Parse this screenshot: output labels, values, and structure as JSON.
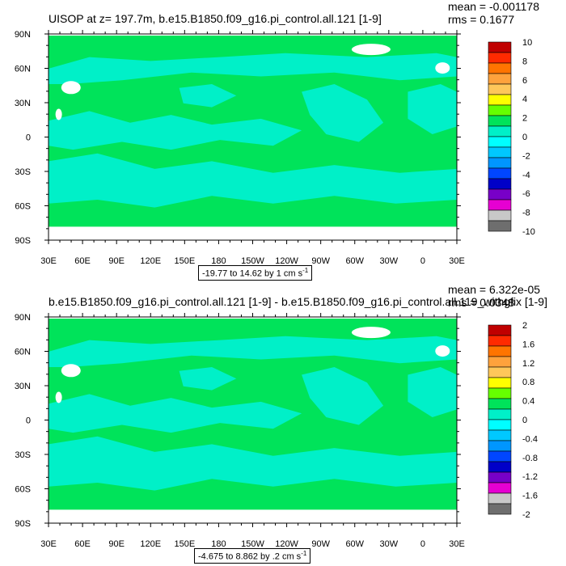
{
  "panels": [
    {
      "title": "UISOP at z= 197.7m, b.e15.B1850.f09_g16.pi_control.all.121 [1-9]",
      "mean_label": "mean = -0.001178",
      "rms_label": "rms = 0.1677",
      "contour_info": {
        "text": "-19.77 to 14.62 by 1 cm s",
        "unit_exp": "-1"
      },
      "colorbar": {
        "labels": [
          "10",
          "8",
          "6",
          "4",
          "2",
          "0",
          "-2",
          "-4",
          "-6",
          "-8",
          "-10"
        ],
        "colors": [
          "#c00000",
          "#ff2a00",
          "#ff7400",
          "#ffa23c",
          "#ffc75a",
          "#ffff00",
          "#66ff00",
          "#00e35a",
          "#00f0c8",
          "#00ffff",
          "#00c8ff",
          "#0096ff",
          "#0046ff",
          "#0000c8",
          "#7800c8",
          "#e600d2",
          "#c8c8c8",
          "#6e6e6e"
        ]
      }
    },
    {
      "title": "b.e15.B1850.f09_g16.pi_control.all.121 [1-9] - b.e15.B1850.f09_g16.pi_control.all.119_withgfix [1-9]",
      "mean_label": "mean = 6.322e-05",
      "rms_label": "rms = 0.0348",
      "contour_info": {
        "text": "-4.675 to 8.862 by .2 cm s",
        "unit_exp": "-1"
      },
      "colorbar": {
        "labels": [
          "2",
          "1.6",
          "1.2",
          "0.8",
          "0.4",
          "0",
          "-0.4",
          "-0.8",
          "-1.2",
          "-1.6",
          "-2"
        ],
        "colors": [
          "#c00000",
          "#ff2a00",
          "#ff7400",
          "#ffa23c",
          "#ffc75a",
          "#ffff00",
          "#66ff00",
          "#00e35a",
          "#00f0c8",
          "#00ffff",
          "#00c8ff",
          "#0096ff",
          "#0046ff",
          "#0000c8",
          "#7800c8",
          "#e600d2",
          "#c8c8c8",
          "#6e6e6e"
        ]
      }
    }
  ],
  "axes": {
    "lon_labels": [
      "30E",
      "60E",
      "90E",
      "120E",
      "150E",
      "180",
      "150W",
      "120W",
      "90W",
      "60W",
      "30W",
      "0",
      "30E"
    ],
    "lat_labels": [
      "90N",
      "60N",
      "30N",
      "0",
      "30S",
      "60S",
      "90S"
    ]
  },
  "map_colors": {
    "ocean_main": "#00e35a",
    "ocean_alt": "#00f0c8",
    "land": "#ffffff",
    "frame": "#000000"
  }
}
